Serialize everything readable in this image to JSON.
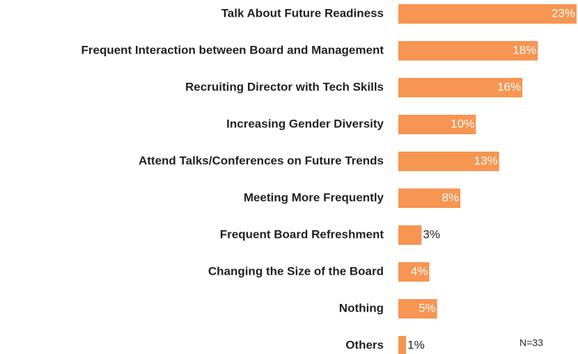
{
  "chart_data": {
    "type": "barh",
    "categories": [
      "Talk About Future Readiness",
      "Frequent Interaction between Board and Management",
      "Recruiting Director with Tech Skills",
      "Increasing Gender Diversity",
      "Attend Talks/Conferences on Future Trends",
      "Meeting More Frequently",
      "Frequent Board Refreshment",
      "Changing the Size of the Board",
      "Nothing",
      "Others"
    ],
    "values": [
      23,
      18,
      16,
      10,
      13,
      8,
      3,
      4,
      5,
      1
    ],
    "value_labels": [
      "23%",
      "18%",
      "16%",
      "10%",
      "13%",
      "8%",
      "3%",
      "4%",
      "5%",
      "1%"
    ],
    "color": "#f79552",
    "annotation": "N=33"
  }
}
